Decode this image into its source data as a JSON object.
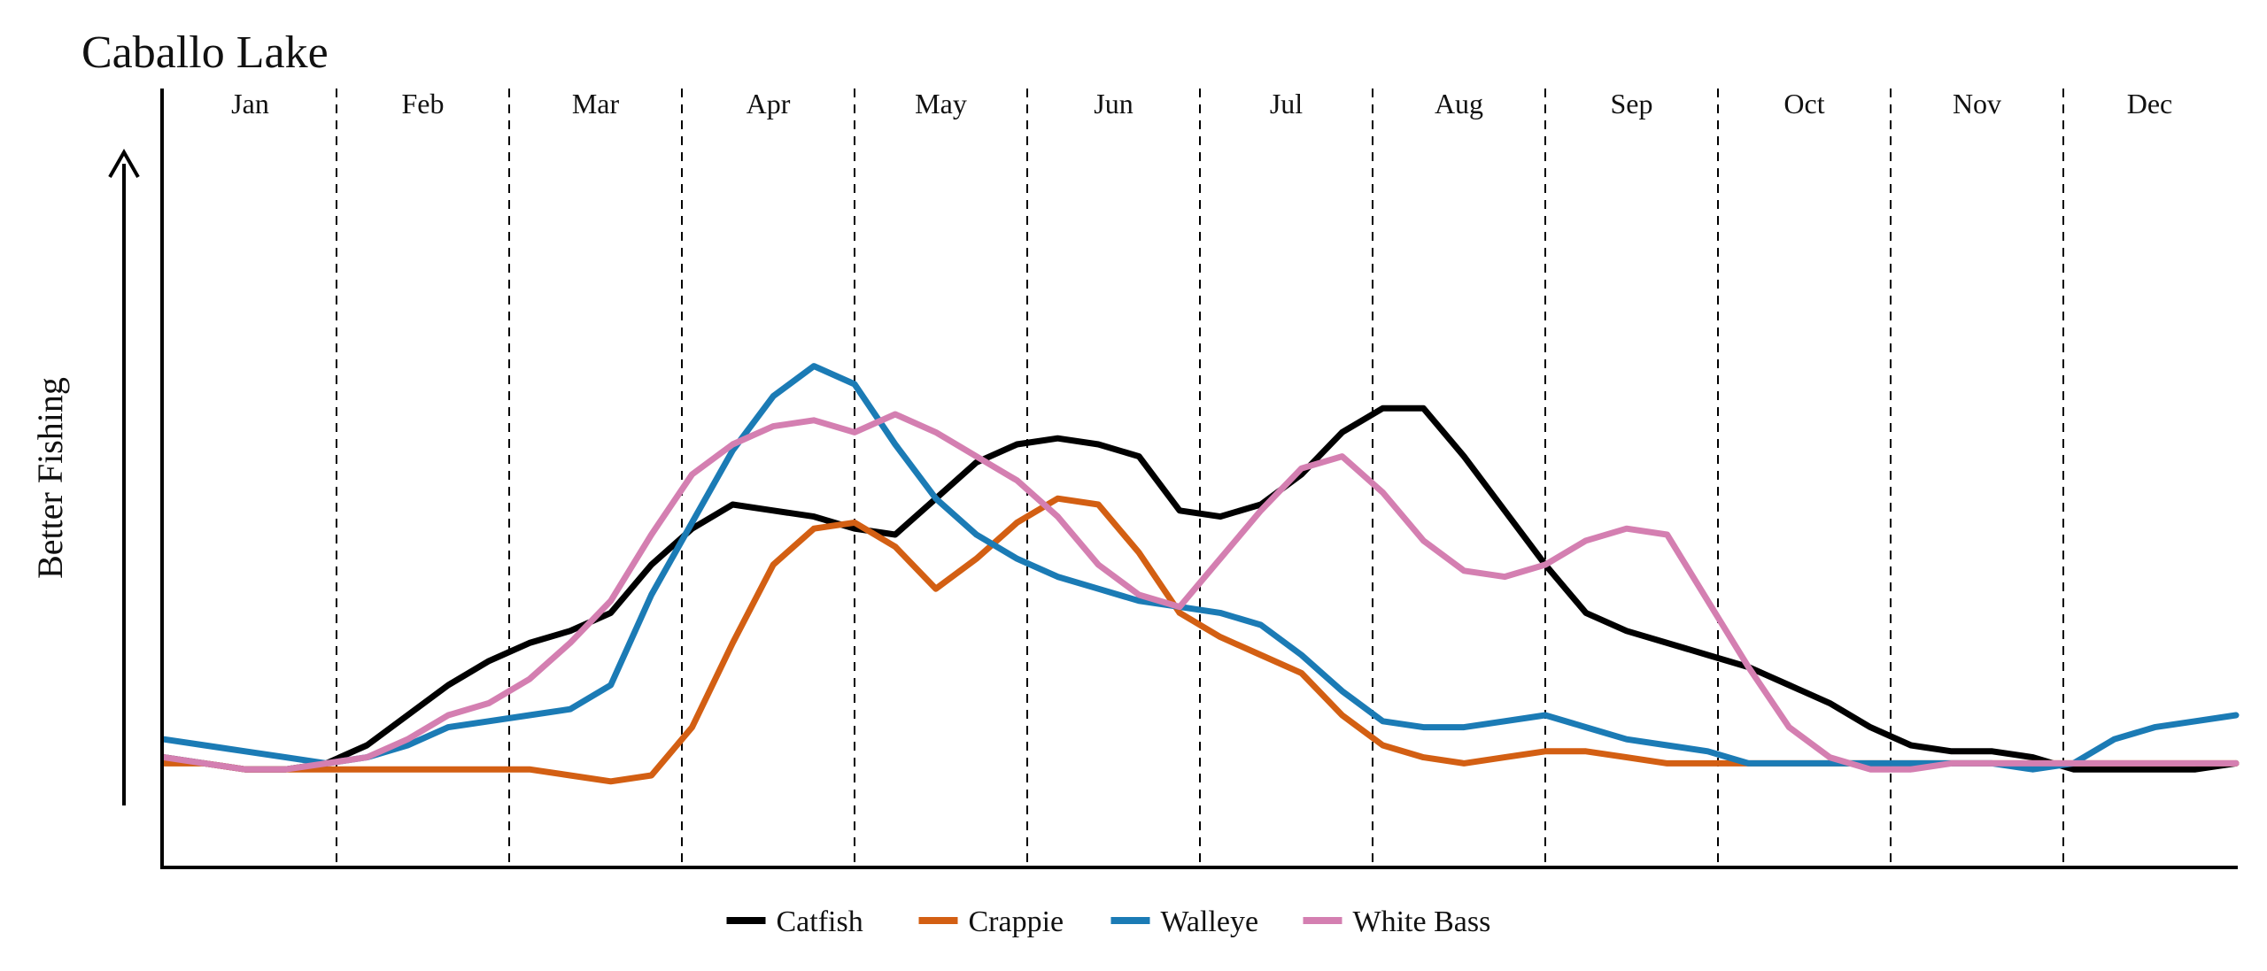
{
  "chart_data": {
    "type": "line",
    "title": "Caballo Lake",
    "ylabel": "Better Fishing",
    "xlabel": "",
    "ylim": [
      0,
      10
    ],
    "grid": false,
    "legend_position": "bottom",
    "months": [
      "Jan",
      "Feb",
      "Mar",
      "Apr",
      "May",
      "Jun",
      "Jul",
      "Aug",
      "Sep",
      "Oct",
      "Nov",
      "Dec"
    ],
    "x_unit": "weeks",
    "x": [
      0,
      1,
      2,
      3,
      4,
      5,
      6,
      7,
      8,
      9,
      10,
      11,
      12,
      13,
      14,
      15,
      16,
      17,
      18,
      19,
      20,
      21,
      22,
      23,
      24,
      25,
      26,
      27,
      28,
      29,
      30,
      31,
      32,
      33,
      34,
      35,
      36,
      37,
      38,
      39,
      40,
      41,
      42,
      43,
      44,
      45,
      46,
      47,
      48,
      49,
      50,
      51
    ],
    "series": [
      {
        "name": "Catfish",
        "color": "#000000",
        "values": [
          1.8,
          1.7,
          1.6,
          1.6,
          1.7,
          2.0,
          2.5,
          3.0,
          3.4,
          3.7,
          3.9,
          4.2,
          5.0,
          5.6,
          6.0,
          5.9,
          5.8,
          5.6,
          5.5,
          6.1,
          6.7,
          7.0,
          7.1,
          7.0,
          6.8,
          5.9,
          5.8,
          6.0,
          6.5,
          7.2,
          7.6,
          7.6,
          6.8,
          5.9,
          5.0,
          4.2,
          3.9,
          3.7,
          3.5,
          3.3,
          3.0,
          2.7,
          2.3,
          2.0,
          1.9,
          1.9,
          1.8,
          1.6,
          1.6,
          1.6,
          1.6,
          1.7
        ]
      },
      {
        "name": "Crappie",
        "color": "#d35f13",
        "values": [
          1.7,
          1.7,
          1.6,
          1.6,
          1.6,
          1.6,
          1.6,
          1.6,
          1.6,
          1.6,
          1.5,
          1.4,
          1.5,
          2.3,
          3.7,
          5.0,
          5.6,
          5.7,
          5.3,
          4.6,
          5.1,
          5.7,
          6.1,
          6.0,
          5.2,
          4.2,
          3.8,
          3.5,
          3.2,
          2.5,
          2.0,
          1.8,
          1.7,
          1.8,
          1.9,
          1.9,
          1.8,
          1.7,
          1.7,
          1.7,
          1.7,
          1.7,
          1.7,
          1.7,
          1.7,
          1.7,
          1.7,
          1.7,
          1.7,
          1.7,
          1.7,
          1.7
        ]
      },
      {
        "name": "Walleye",
        "color": "#1b7bb5",
        "values": [
          2.1,
          2.0,
          1.9,
          1.8,
          1.7,
          1.8,
          2.0,
          2.3,
          2.4,
          2.5,
          2.6,
          3.0,
          4.5,
          5.7,
          6.9,
          7.8,
          8.3,
          8.0,
          7.0,
          6.1,
          5.5,
          5.1,
          4.8,
          4.6,
          4.4,
          4.3,
          4.2,
          4.0,
          3.5,
          2.9,
          2.4,
          2.3,
          2.3,
          2.4,
          2.5,
          2.3,
          2.1,
          2.0,
          1.9,
          1.7,
          1.7,
          1.7,
          1.7,
          1.7,
          1.7,
          1.7,
          1.6,
          1.7,
          2.1,
          2.3,
          2.4,
          2.5
        ]
      },
      {
        "name": "White Bass",
        "color": "#d47fb1",
        "values": [
          1.8,
          1.7,
          1.6,
          1.6,
          1.7,
          1.8,
          2.1,
          2.5,
          2.7,
          3.1,
          3.7,
          4.4,
          5.5,
          6.5,
          7.0,
          7.3,
          7.4,
          7.2,
          7.5,
          7.2,
          6.8,
          6.4,
          5.8,
          5.0,
          4.5,
          4.3,
          5.1,
          5.9,
          6.6,
          6.8,
          6.2,
          5.4,
          4.9,
          4.8,
          5.0,
          5.4,
          5.6,
          5.5,
          4.4,
          3.3,
          2.3,
          1.8,
          1.6,
          1.6,
          1.7,
          1.7,
          1.7,
          1.7,
          1.7,
          1.7,
          1.7,
          1.7
        ]
      }
    ]
  }
}
